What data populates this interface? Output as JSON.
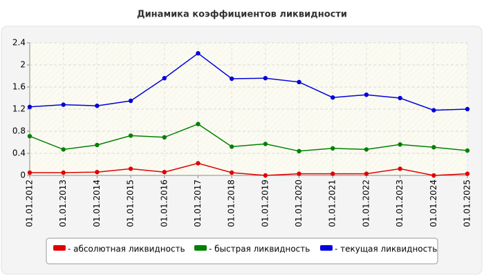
{
  "chart_data": {
    "type": "line",
    "title": "Динамика коэффициентов ликвидности",
    "categories": [
      "01.01.2012",
      "01.01.2013",
      "01.01.2014",
      "01.01.2015",
      "01.01.2016",
      "01.01.2017",
      "01.01.2018",
      "01.01.2019",
      "01.01.2020",
      "01.01.2021",
      "01.01.2022",
      "01.01.2023",
      "01.01.2024",
      "01.01.2025"
    ],
    "series": [
      {
        "name": "- абсолютная ликвидность",
        "color": "#e00000",
        "values": [
          0.05,
          0.05,
          0.06,
          0.12,
          0.06,
          0.22,
          0.05,
          0.0,
          0.03,
          0.03,
          0.03,
          0.12,
          0.0,
          0.03
        ]
      },
      {
        "name": "- быстрая ликвидность",
        "color": "#008000",
        "values": [
          0.71,
          0.47,
          0.55,
          0.72,
          0.69,
          0.93,
          0.52,
          0.57,
          0.44,
          0.49,
          0.47,
          0.56,
          0.51,
          0.45
        ]
      },
      {
        "name": "- текущая ликвидность",
        "color": "#0000dd",
        "values": [
          1.24,
          1.28,
          1.26,
          1.35,
          1.76,
          2.21,
          1.75,
          1.76,
          1.69,
          1.41,
          1.46,
          1.4,
          1.18,
          1.2
        ]
      }
    ],
    "ylim": [
      0,
      2.4
    ],
    "yticks": [
      0,
      0.4,
      0.8,
      1.2,
      1.6,
      2,
      2.4
    ],
    "grid": true
  }
}
